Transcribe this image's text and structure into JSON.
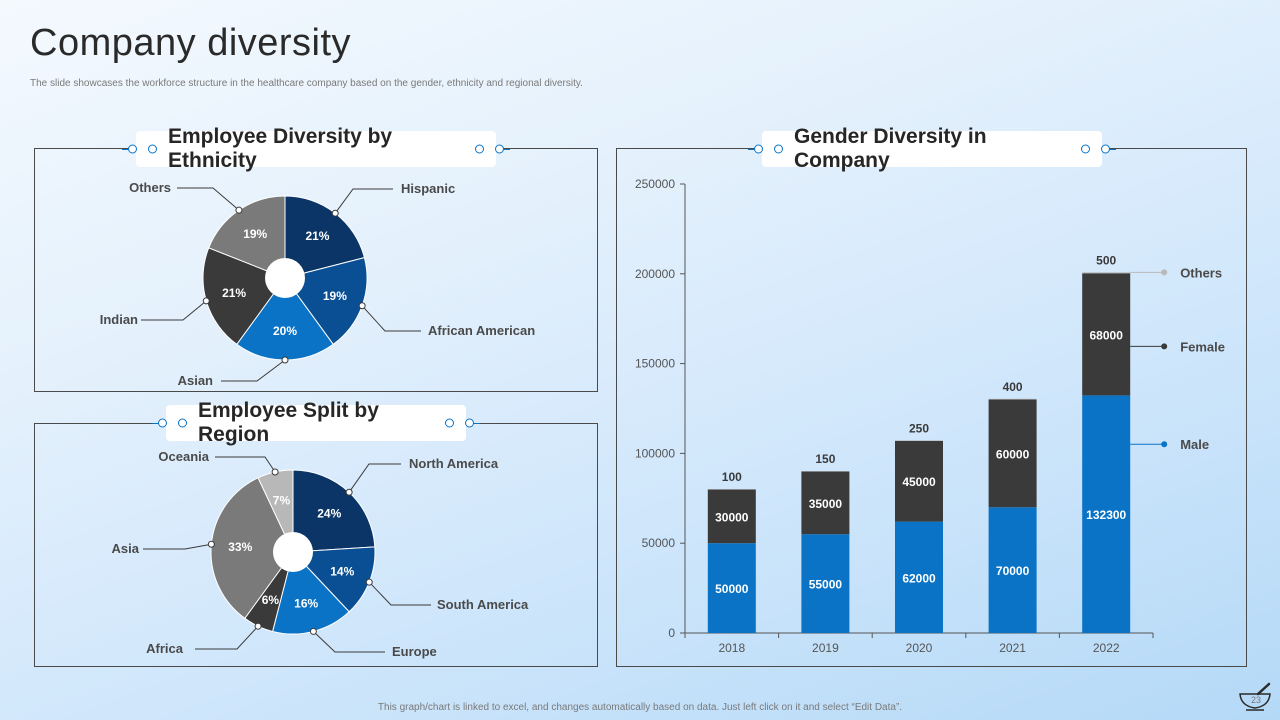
{
  "slide": {
    "title": "Company diversity",
    "subtitle": "The slide showcases the workforce structure in the healthcare company based on the gender, ethnicity and regional diversity.",
    "footer": "This graph/chart is linked to excel, and changes automatically based on data. Just left click on it and select “Edit Data”.",
    "page_number": "23"
  },
  "colors": {
    "navy": "#0a3566",
    "blue": "#0b73c6",
    "royal": "#0a4f93",
    "dark": "#3a3a3a",
    "gray": "#7a7a7a",
    "light_gray": "#b8b8b8",
    "others_marker": "#b8b8b8"
  },
  "chart_data": [
    {
      "type": "pie",
      "title": "Employee Diversity by Ethnicity",
      "slices": [
        {
          "label": "Hispanic",
          "value": 21,
          "display": "21%",
          "color": "#0a3566"
        },
        {
          "label": "African American",
          "value": 19,
          "display": "19%",
          "color": "#0a4f93"
        },
        {
          "label": "Asian",
          "value": 20,
          "display": "20%",
          "color": "#0b73c6"
        },
        {
          "label": "Indian",
          "value": 21,
          "display": "21%",
          "color": "#3a3a3a"
        },
        {
          "label": "Others",
          "value": 19,
          "display": "19%",
          "color": "#7a7a7a"
        }
      ]
    },
    {
      "type": "pie",
      "title": "Employee Split by Region",
      "slices": [
        {
          "label": "North America",
          "value": 24,
          "display": "24%",
          "color": "#0a3566"
        },
        {
          "label": "South America",
          "value": 14,
          "display": "14%",
          "color": "#0a4f93"
        },
        {
          "label": "Europe",
          "value": 16,
          "display": "16%",
          "color": "#0b73c6"
        },
        {
          "label": "Africa",
          "value": 6,
          "display": "6%",
          "color": "#3a3a3a"
        },
        {
          "label": "Asia",
          "value": 33,
          "display": "33%",
          "color": "#7a7a7a"
        },
        {
          "label": "Oceania",
          "value": 7,
          "display": "7%",
          "color": "#b8b8b8"
        }
      ]
    },
    {
      "type": "bar",
      "stacked": true,
      "title": "Gender Diversity in Company",
      "categories": [
        "2018",
        "2019",
        "2020",
        "2021",
        "2022"
      ],
      "series": [
        {
          "name": "Male",
          "values": [
            50000,
            55000,
            62000,
            70000,
            132300
          ],
          "color": "#0b73c6"
        },
        {
          "name": "Female",
          "values": [
            30000,
            35000,
            45000,
            60000,
            68000
          ],
          "color": "#3a3a3a"
        },
        {
          "name": "Others",
          "values": [
            100,
            150,
            250,
            400,
            500
          ],
          "color": "#b8b8b8"
        }
      ],
      "ylim": [
        0,
        250000
      ],
      "yticks": [
        "0",
        "50000",
        "100000",
        "150000",
        "200000",
        "250000"
      ],
      "xlabel": "",
      "ylabel": ""
    }
  ]
}
